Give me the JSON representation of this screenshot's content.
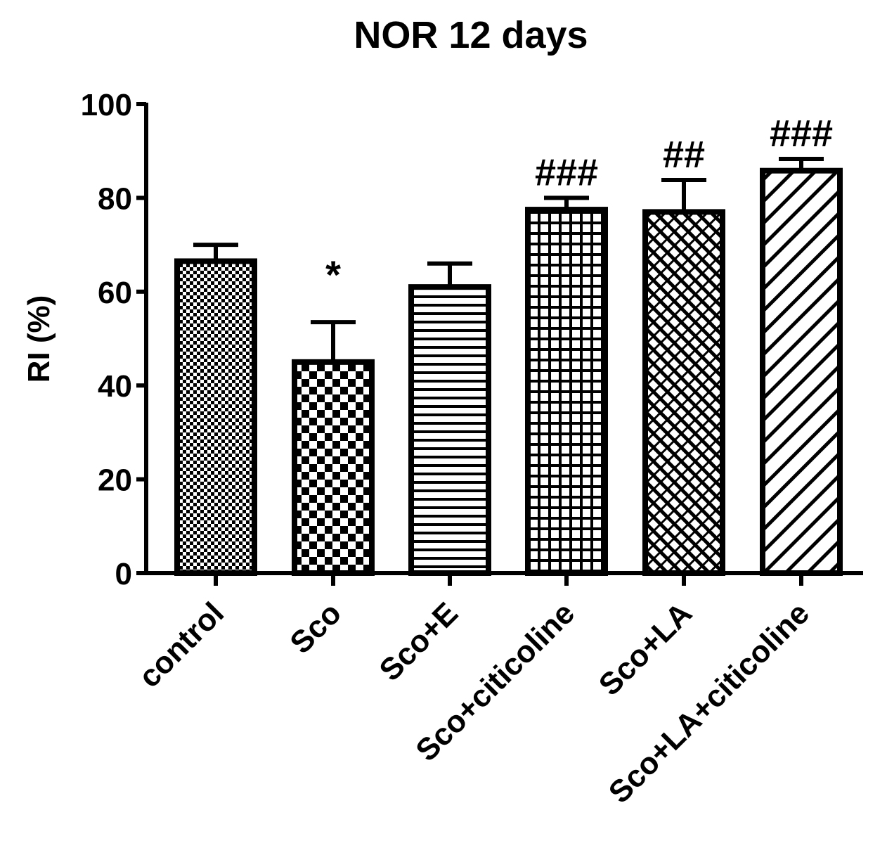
{
  "chart_data": {
    "type": "bar",
    "title": "NOR 12 days",
    "xlabel": "",
    "ylabel": "RI (%)",
    "ylim": [
      0,
      100
    ],
    "yticks": [
      0,
      20,
      40,
      60,
      80,
      100
    ],
    "categories": [
      "control",
      "Sco",
      "Sco+E",
      "Sco+citicoline",
      "Sco+LA",
      "Sco+LA+citicoline"
    ],
    "values": [
      66.5,
      45,
      61,
      77.5,
      77,
      85.8
    ],
    "errors": [
      3.5,
      8.5,
      5,
      2.5,
      6.8,
      2.5
    ],
    "annotations": [
      "",
      "*",
      "",
      "###",
      "##",
      "###"
    ],
    "fill_patterns": [
      "fine-checker",
      "checker",
      "horizontal-lines",
      "grid",
      "diagonal-crosshatch",
      "diagonal-lines"
    ],
    "bar_color": "#000000",
    "background": "#ffffff",
    "grid": false,
    "legend": "none"
  }
}
